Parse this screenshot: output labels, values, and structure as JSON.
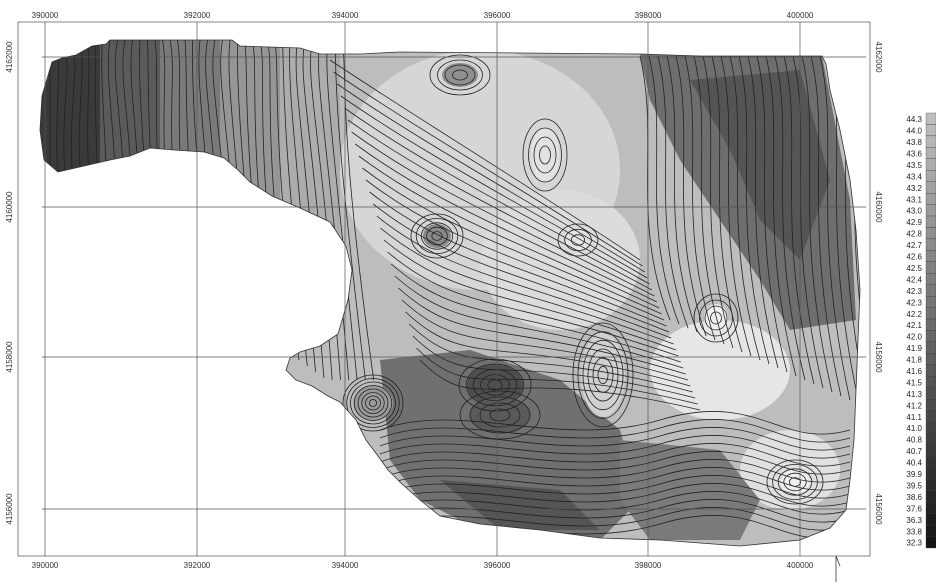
{
  "map": {
    "x_ticks": [
      "390000",
      "392000",
      "394000",
      "396000",
      "398000",
      "400000"
    ],
    "y_ticks": [
      "4162000",
      "4160000",
      "4158000",
      "4156000"
    ],
    "colors": {
      "light": "#d9d9d9",
      "mid": "#a8a8a8",
      "dark": "#6e6e6e",
      "darkest": "#3a3a3a",
      "white": "#f2f2f2"
    }
  },
  "legend": {
    "labels": [
      "44.3",
      "44.0",
      "43.8",
      "43.6",
      "43.5",
      "43.4",
      "43.2",
      "43.1",
      "43.0",
      "42.9",
      "42.8",
      "42.7",
      "42.6",
      "42.5",
      "42.4",
      "42.3",
      "42.3",
      "42.2",
      "42.1",
      "42.0",
      "41.9",
      "41.8",
      "41.6",
      "41.5",
      "41.3",
      "41.2",
      "41.1",
      "41.0",
      "40.8",
      "40.7",
      "40.4",
      "39.9",
      "39.5",
      "38.6",
      "37.6",
      "36.3",
      "33.8",
      "32.3"
    ]
  },
  "north_arrow": {
    "icon": "north-arrow-icon"
  }
}
